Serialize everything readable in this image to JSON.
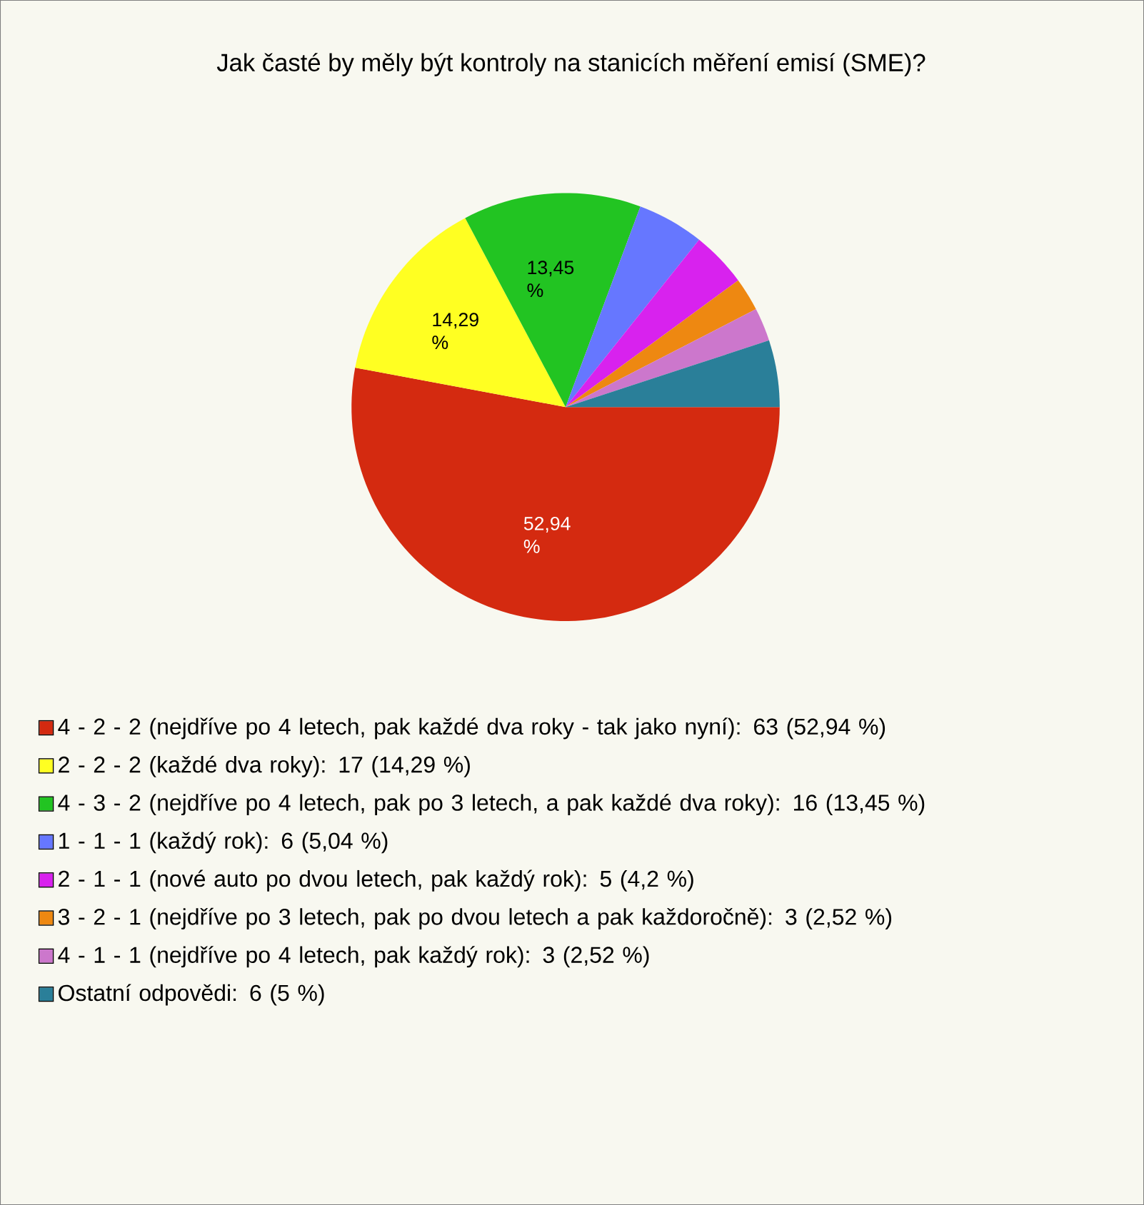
{
  "chart_data": {
    "type": "pie",
    "title": "Jak časté by měly být kontroly na stanicích měření emisí (SME)?",
    "categories": [
      "4 - 2 - 2 (nejdříve po 4 letech, pak každé dva roky - tak jako nyní): 63 (52,94 %)",
      "2 - 2 - 2 (každé dva roky): 17 (14,29 %)",
      "4 - 3 - 2 (nejdříve po 4 letech, pak po 3 letech, a pak každé dva roky): 16 (13,45 %)",
      "1 - 1 - 1 (každý rok): 6 (5,04 %)",
      "2 - 1 - 1 (nové auto po dvou letech, pak každý rok): 5 (4,2 %)",
      "3 - 2 - 1 (nejdříve po 3 letech, pak po dvou letech a pak každoročně): 3 (2,52 %)",
      "4 - 1 - 1 (nejdříve po 4 letech, pak každý rok): 3 (2,52 %)",
      "Ostatní odpovědi: 6 (5 %)"
    ],
    "values": [
      52.94,
      14.29,
      13.45,
      5.04,
      4.2,
      2.52,
      2.52,
      5.04
    ],
    "value_labels": [
      "52,94 %",
      "14,29 %",
      "13,45 %",
      null,
      null,
      null,
      null,
      null
    ],
    "colors": [
      "#d42a10",
      "#ffff22",
      "#22c422",
      "#6677ff",
      "#d822ee",
      "#ee8811",
      "#cc77cc",
      "#2a7f99"
    ],
    "legend": "bottom"
  }
}
